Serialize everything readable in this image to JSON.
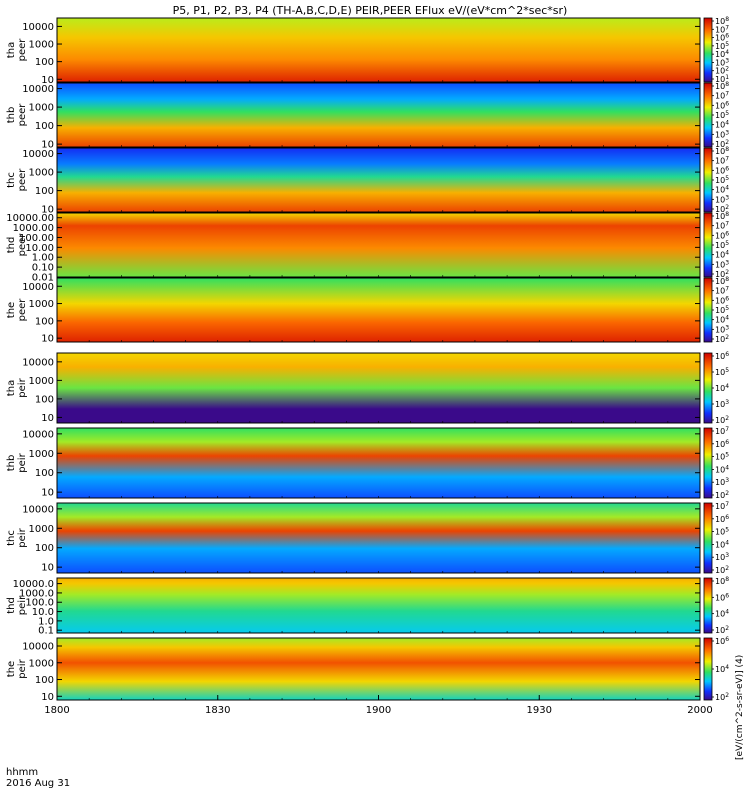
{
  "chart_data": {
    "type": "heatmap",
    "title": "P5, P1, P2, P3, P4 (TH-A,B,C,D,E) PEIR,PEER EFlux eV/(eV*cm^2*sec*sr)",
    "x_ticks": [
      "1800",
      "1830",
      "1900",
      "1930",
      "2000"
    ],
    "x_range": [
      "1800",
      "2000"
    ],
    "x_corner_label": "hhmm",
    "date_label": "2016 Aug 31",
    "colorbar_unit_label": "[eV/(cm^2-s-sr-eV)] (4)",
    "panels": [
      {
        "name": "tha peer",
        "probe": "tha",
        "instrument": "peer",
        "y_scale": "log",
        "y_range": [
          7,
          30000
        ],
        "y_ticks": [
          {
            "v": 10000,
            "t": "10000"
          },
          {
            "v": 1000,
            "t": "1000"
          },
          {
            "v": 100,
            "t": "100"
          },
          {
            "v": 10,
            "t": "10"
          }
        ],
        "colorbar_ticks": [
          "10^8",
          "10^7",
          "10^6",
          "10^5",
          "10^4",
          "10^3",
          "10^2",
          "10^1"
        ],
        "colorbar_range": [
          "10^1",
          "10^8"
        ],
        "profile": [
          [
            0.0,
            0.95
          ],
          [
            0.35,
            0.8
          ],
          [
            0.7,
            0.72
          ],
          [
            1.0,
            0.62
          ]
        ]
      },
      {
        "name": "thb peer",
        "probe": "thb",
        "instrument": "peer",
        "y_scale": "log",
        "y_range": [
          7,
          20000
        ],
        "y_ticks": [
          {
            "v": 10000,
            "t": "10000"
          },
          {
            "v": 1000,
            "t": "1000"
          },
          {
            "v": 100,
            "t": "100"
          },
          {
            "v": 10,
            "t": "10"
          }
        ],
        "colorbar_ticks": [
          "10^8",
          "10^7",
          "10^6",
          "10^5",
          "10^4",
          "10^3",
          "10^2"
        ],
        "colorbar_range": [
          "10^2",
          "10^8"
        ],
        "profile": [
          [
            0.0,
            0.9
          ],
          [
            0.3,
            0.75
          ],
          [
            0.55,
            0.5
          ],
          [
            0.75,
            0.3
          ],
          [
            1.0,
            0.2
          ]
        ]
      },
      {
        "name": "thc peer",
        "probe": "thc",
        "instrument": "peer",
        "y_scale": "log",
        "y_range": [
          7,
          20000
        ],
        "y_ticks": [
          {
            "v": 10000,
            "t": "10000"
          },
          {
            "v": 1000,
            "t": "1000"
          },
          {
            "v": 100,
            "t": "100"
          },
          {
            "v": 10,
            "t": "10"
          }
        ],
        "colorbar_ticks": [
          "10^8",
          "10^7",
          "10^6",
          "10^5",
          "10^4",
          "10^3",
          "10^2"
        ],
        "colorbar_range": [
          "10^2",
          "10^8"
        ],
        "profile": [
          [
            0.0,
            0.9
          ],
          [
            0.3,
            0.75
          ],
          [
            0.55,
            0.45
          ],
          [
            0.75,
            0.25
          ],
          [
            1.0,
            0.15
          ]
        ]
      },
      {
        "name": "thd peer",
        "probe": "thd",
        "instrument": "peer",
        "y_scale": "log",
        "y_range": [
          0.01,
          30000
        ],
        "y_ticks": [
          {
            "v": 10000,
            "t": "10000.00"
          },
          {
            "v": 1000,
            "t": "1000.00"
          },
          {
            "v": 100,
            "t": "100.00"
          },
          {
            "v": 10,
            "t": "10.00"
          },
          {
            "v": 1,
            "t": "1.00"
          },
          {
            "v": 0.1,
            "t": "0.10"
          },
          {
            "v": 0.01,
            "t": "0.01"
          }
        ],
        "colorbar_ticks": [
          "10^8",
          "10^7",
          "10^6",
          "10^5",
          "10^4",
          "10^3",
          "10^2"
        ],
        "colorbar_range": [
          "10^2",
          "10^8"
        ],
        "profile": [
          [
            0.0,
            0.55
          ],
          [
            0.45,
            0.8
          ],
          [
            0.8,
            0.9
          ],
          [
            1.0,
            0.7
          ]
        ]
      },
      {
        "name": "the peer",
        "probe": "the",
        "instrument": "peer",
        "y_scale": "log",
        "y_range": [
          6,
          30000
        ],
        "y_ticks": [
          {
            "v": 10000,
            "t": "10000"
          },
          {
            "v": 1000,
            "t": "1000"
          },
          {
            "v": 100,
            "t": "100"
          },
          {
            "v": 10,
            "t": "10"
          }
        ],
        "colorbar_ticks": [
          "10^8",
          "10^7",
          "10^6",
          "10^5",
          "10^4",
          "10^3",
          "10^2"
        ],
        "colorbar_range": [
          "10^2",
          "10^8"
        ],
        "profile": [
          [
            0.0,
            0.95
          ],
          [
            0.3,
            0.85
          ],
          [
            0.6,
            0.7
          ],
          [
            1.0,
            0.5
          ]
        ]
      },
      {
        "name": "tha peir",
        "probe": "tha",
        "instrument": "peir",
        "y_scale": "log",
        "y_range": [
          5,
          30000
        ],
        "y_ticks": [
          {
            "v": 10000,
            "t": "10000"
          },
          {
            "v": 1000,
            "t": "1000"
          },
          {
            "v": 100,
            "t": "100"
          },
          {
            "v": 10,
            "t": "10"
          }
        ],
        "colorbar_ticks": [
          "10^6",
          "10^5",
          "10^4",
          "10^3",
          "10^2"
        ],
        "colorbar_range": [
          "10^2",
          "10^6"
        ],
        "profile": [
          [
            0.0,
            0.0
          ],
          [
            0.2,
            0.0
          ],
          [
            0.5,
            0.55
          ],
          [
            0.8,
            0.75
          ],
          [
            1.0,
            0.7
          ]
        ]
      },
      {
        "name": "thb peir",
        "probe": "thb",
        "instrument": "peir",
        "y_scale": "log",
        "y_range": [
          5,
          20000
        ],
        "y_ticks": [
          {
            "v": 10000,
            "t": "10000"
          },
          {
            "v": 1000,
            "t": "1000"
          },
          {
            "v": 100,
            "t": "100"
          },
          {
            "v": 10,
            "t": "10"
          }
        ],
        "colorbar_ticks": [
          "10^7",
          "10^6",
          "10^5",
          "10^4",
          "10^3",
          "10^2"
        ],
        "colorbar_range": [
          "10^2",
          "10^7"
        ],
        "profile": [
          [
            0.0,
            0.2
          ],
          [
            0.3,
            0.3
          ],
          [
            0.6,
            0.9
          ],
          [
            0.8,
            0.6
          ],
          [
            1.0,
            0.5
          ]
        ]
      },
      {
        "name": "thc peir",
        "probe": "thc",
        "instrument": "peir",
        "y_scale": "log",
        "y_range": [
          5,
          20000
        ],
        "y_ticks": [
          {
            "v": 10000,
            "t": "10000"
          },
          {
            "v": 1000,
            "t": "1000"
          },
          {
            "v": 100,
            "t": "100"
          },
          {
            "v": 10,
            "t": "10"
          }
        ],
        "colorbar_ticks": [
          "10^7",
          "10^6",
          "10^5",
          "10^4",
          "10^3",
          "10^2"
        ],
        "colorbar_range": [
          "10^2",
          "10^7"
        ],
        "profile": [
          [
            0.0,
            0.2
          ],
          [
            0.35,
            0.3
          ],
          [
            0.6,
            0.9
          ],
          [
            0.8,
            0.6
          ],
          [
            1.0,
            0.45
          ]
        ]
      },
      {
        "name": "thd peir",
        "probe": "thd",
        "instrument": "peir",
        "y_scale": "log",
        "y_range": [
          0.05,
          40000
        ],
        "y_ticks": [
          {
            "v": 10000,
            "t": "10000.0"
          },
          {
            "v": 1000,
            "t": "1000.0"
          },
          {
            "v": 100,
            "t": "100.0"
          },
          {
            "v": 10,
            "t": "10.0"
          },
          {
            "v": 1,
            "t": "1.0"
          },
          {
            "v": 0.1,
            "t": "0.1"
          }
        ],
        "colorbar_ticks": [
          "10^8",
          "10^6",
          "10^4",
          "10^2"
        ],
        "colorbar_range": [
          "10^1",
          "10^8"
        ],
        "profile": [
          [
            0.0,
            0.35
          ],
          [
            0.4,
            0.45
          ],
          [
            0.7,
            0.6
          ],
          [
            0.9,
            0.72
          ],
          [
            1.0,
            0.75
          ]
        ]
      },
      {
        "name": "the peir",
        "probe": "the",
        "instrument": "peir",
        "y_scale": "log",
        "y_range": [
          6,
          30000
        ],
        "y_ticks": [
          {
            "v": 10000,
            "t": "10000"
          },
          {
            "v": 1000,
            "t": "1000"
          },
          {
            "v": 100,
            "t": "100"
          },
          {
            "v": 10,
            "t": "10"
          }
        ],
        "colorbar_ticks": [
          "10^6",
          "10^4",
          "10^2"
        ],
        "colorbar_range": [
          "10^1",
          "10^7"
        ],
        "profile": [
          [
            0.0,
            0.4
          ],
          [
            0.3,
            0.7
          ],
          [
            0.6,
            0.88
          ],
          [
            0.85,
            0.72
          ],
          [
            1.0,
            0.6
          ]
        ]
      }
    ]
  }
}
